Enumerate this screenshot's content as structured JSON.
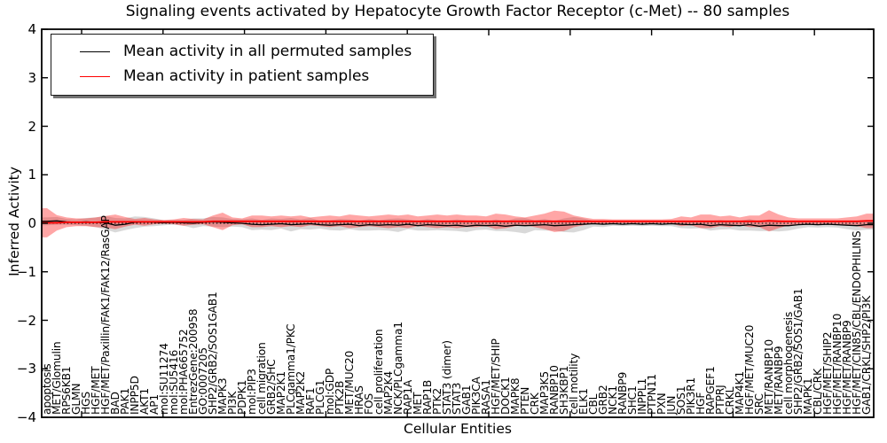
{
  "chart_data": {
    "type": "line",
    "title": "Signaling events activated by Hepatocyte Growth Factor Receptor (c-Met) -- 80 samples",
    "xlabel": "Cellular Entities",
    "ylabel": "Inferred Activity",
    "ylim": [
      -4,
      4
    ],
    "yticks": [
      {
        "value": 4,
        "label": "4"
      },
      {
        "value": 3,
        "label": "3"
      },
      {
        "value": 2,
        "label": "2"
      },
      {
        "value": 1,
        "label": "1"
      },
      {
        "value": 0,
        "label": "0"
      },
      {
        "value": -1,
        "label": "−1"
      },
      {
        "value": -2,
        "label": "−2"
      },
      {
        "value": -3,
        "label": "−3"
      },
      {
        "value": -4,
        "label": "−4"
      }
    ],
    "grid": false,
    "legend_position": "upper left",
    "legend": [
      {
        "label": "Mean activity in all permuted samples",
        "color": "#000000"
      },
      {
        "label": "Mean activity in patient samples",
        "color": "#ff0000"
      }
    ],
    "zero_line": {
      "value": 0,
      "style": "dotted",
      "color": "#000000"
    },
    "categories": [
      "apoptosis",
      "MET/Glomulin",
      "RPS6KB1",
      "GLMN",
      "HGS",
      "HGF/MET",
      "HGF/MET/Paxillin/FAK1/FAK12/RasGAP",
      "BAD",
      "PAK1",
      "INPP5D",
      "AKT1",
      "AP1",
      "mol:SU11274",
      "mol:SU5416",
      "mol:PHA665752",
      "EntrezGene:200958",
      "GO:0007205",
      "SHP2/GRB2/SOS1GAB1",
      "MAPK3",
      "PI3K",
      "PDPK1",
      "mol:PIP3",
      "cell migration",
      "GRB2/SHC",
      "MAP2K1",
      "PLCgamma1/PKC",
      "MAP2K2",
      "RAF1",
      "PLCG1",
      "mol:GDP",
      "PTK2B",
      "MET/MUC20",
      "HRAS",
      "FOS",
      "cell proliferation",
      "MAP2K4",
      "NCK/PLCgamma1",
      "RAP1A",
      "MET",
      "RAP1B",
      "PTK2",
      "STAT3 (dimer)",
      "STAT3",
      "GAB1",
      "PIK3CA",
      "RASA1",
      "HGF/MET/SHIP",
      "DOCK1",
      "MAPK8",
      "PTEN",
      "CRK",
      "MAP3K5",
      "RANBP10",
      "SH3KBP1",
      "cell motility",
      "ELK1",
      "CBL",
      "GRB2",
      "NCK1",
      "RANBP9",
      "SHC1",
      "INPPL1",
      "PTPN11",
      "PXN",
      "JUN",
      "SOS1",
      "PIK3R1",
      "HGF",
      "RAPGEF1",
      "PTPRJ",
      "CRKL",
      "MAP4K1",
      "HGF/MET/MUC20",
      "SRC",
      "MET/RANBP10",
      "MET/RANBP9",
      "cell morphogenesis",
      "SHP2/GRB2/SOS1/GAB1",
      "MAPK1",
      "CBL/CRK",
      "HGF/MET/SHIP2",
      "HGF/MET/RANBP10",
      "HGF/MET/RANBP9",
      "HGF/MET/CIN85/CBL/ENDOPHILINS",
      "GAB1/CRKL/SHP2/PI3K"
    ],
    "series": [
      {
        "name": "Mean activity in all permuted samples",
        "color": "#000000",
        "values": [
          0.04,
          0.05,
          0.03,
          0.02,
          0.03,
          0.02,
          0.01,
          -0.04,
          -0.02,
          0.02,
          0.03,
          0.02,
          0.01,
          0.02,
          0.01,
          0.0,
          0.02,
          0.03,
          0.02,
          0.01,
          0.0,
          -0.02,
          -0.03,
          -0.02,
          -0.01,
          -0.03,
          -0.02,
          -0.01,
          -0.03,
          -0.04,
          -0.03,
          -0.02,
          -0.05,
          -0.03,
          -0.04,
          -0.03,
          -0.04,
          -0.02,
          -0.05,
          -0.03,
          -0.04,
          -0.05,
          -0.04,
          -0.06,
          -0.04,
          -0.05,
          -0.04,
          -0.06,
          -0.04,
          -0.05,
          -0.04,
          -0.03,
          -0.05,
          -0.04,
          -0.03,
          -0.02,
          -0.01,
          -0.02,
          -0.01,
          -0.02,
          -0.01,
          -0.02,
          -0.01,
          -0.02,
          -0.01,
          -0.02,
          -0.03,
          -0.02,
          -0.05,
          -0.03,
          -0.04,
          -0.05,
          -0.03,
          -0.06,
          -0.04,
          -0.05,
          -0.05,
          -0.03,
          -0.02,
          -0.03,
          -0.02,
          -0.03,
          -0.04,
          -0.05,
          -0.03
        ]
      },
      {
        "name": "Mean activity in patient samples",
        "color": "#ff0000",
        "values": [
          0.01,
          0.01,
          0.02,
          0.02,
          0.02,
          0.02,
          0.03,
          0.03,
          0.03,
          0.03,
          0.03,
          0.03,
          0.03,
          0.03,
          0.03,
          0.03,
          0.03,
          0.04,
          0.04,
          0.04,
          0.04,
          0.04,
          0.04,
          0.04,
          0.04,
          0.04,
          0.04,
          0.04,
          0.04,
          0.04,
          0.04,
          0.04,
          0.04,
          0.04,
          0.04,
          0.04,
          0.04,
          0.04,
          0.04,
          0.04,
          0.04,
          0.04,
          0.04,
          0.04,
          0.04,
          0.04,
          0.04,
          0.04,
          0.04,
          0.04,
          0.04,
          0.04,
          0.04,
          0.04,
          0.04,
          0.04,
          0.04,
          0.04,
          0.04,
          0.04,
          0.04,
          0.04,
          0.04,
          0.04,
          0.04,
          0.04,
          0.04,
          0.04,
          0.04,
          0.04,
          0.04,
          0.04,
          0.04,
          0.04,
          0.05,
          0.04,
          0.04,
          0.04,
          0.04,
          0.04,
          0.04,
          0.04,
          0.04,
          0.04,
          0.05
        ]
      }
    ],
    "bands": [
      {
        "name": "permuted samples ± std",
        "color": "#9a9a9a",
        "opacity": 0.38,
        "half_widths": [
          0.08,
          0.08,
          0.06,
          0.06,
          0.08,
          0.1,
          0.14,
          0.15,
          0.12,
          0.12,
          0.1,
          0.08,
          0.05,
          0.05,
          0.06,
          0.1,
          0.08,
          0.1,
          0.1,
          0.08,
          0.08,
          0.12,
          0.1,
          0.12,
          0.1,
          0.14,
          0.1,
          0.12,
          0.08,
          0.1,
          0.12,
          0.1,
          0.1,
          0.12,
          0.1,
          0.12,
          0.14,
          0.1,
          0.1,
          0.12,
          0.1,
          0.1,
          0.12,
          0.12,
          0.1,
          0.08,
          0.12,
          0.1,
          0.14,
          0.16,
          0.1,
          0.12,
          0.1,
          0.14,
          0.16,
          0.12,
          0.06,
          0.06,
          0.04,
          0.04,
          0.04,
          0.04,
          0.04,
          0.04,
          0.05,
          0.08,
          0.08,
          0.08,
          0.1,
          0.1,
          0.08,
          0.1,
          0.12,
          0.1,
          0.12,
          0.12,
          0.1,
          0.08,
          0.06,
          0.06,
          0.06,
          0.06,
          0.08,
          0.1,
          0.1
        ]
      },
      {
        "name": "patient samples ± std",
        "color": "#ff0000",
        "opacity": 0.35,
        "half_widths": [
          0.3,
          0.16,
          0.1,
          0.08,
          0.08,
          0.1,
          0.12,
          0.15,
          0.1,
          0.06,
          0.08,
          0.05,
          0.04,
          0.05,
          0.08,
          0.06,
          0.05,
          0.12,
          0.18,
          0.08,
          0.06,
          0.12,
          0.12,
          0.1,
          0.12,
          0.1,
          0.12,
          0.08,
          0.1,
          0.12,
          0.1,
          0.14,
          0.12,
          0.1,
          0.12,
          0.14,
          0.12,
          0.14,
          0.1,
          0.12,
          0.14,
          0.12,
          0.14,
          0.12,
          0.12,
          0.1,
          0.16,
          0.14,
          0.1,
          0.08,
          0.12,
          0.16,
          0.22,
          0.2,
          0.12,
          0.08,
          0.05,
          0.05,
          0.04,
          0.04,
          0.04,
          0.04,
          0.04,
          0.04,
          0.05,
          0.1,
          0.08,
          0.14,
          0.14,
          0.1,
          0.12,
          0.08,
          0.12,
          0.12,
          0.22,
          0.14,
          0.08,
          0.06,
          0.06,
          0.06,
          0.06,
          0.06,
          0.08,
          0.1,
          0.15
        ]
      }
    ]
  }
}
